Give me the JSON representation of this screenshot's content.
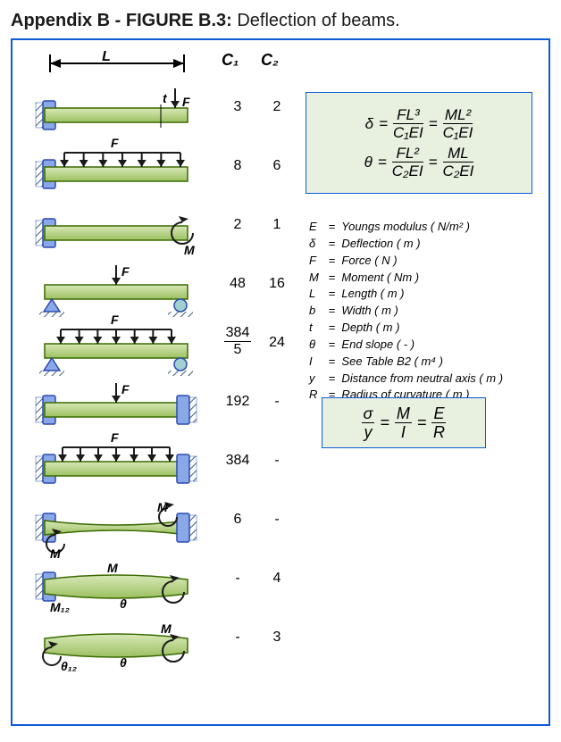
{
  "title_prefix": "Appendix B - FIGURE B.3:",
  "title_rest": " Deflection of beams.",
  "headers": {
    "c1": "C₁",
    "c2": "C₂"
  },
  "dim_label": "L",
  "rows": [
    {
      "c1": "3",
      "c2": "2",
      "type": "cant_point",
      "label": "F",
      "extra": "t"
    },
    {
      "c1": "8",
      "c2": "6",
      "type": "cant_udl",
      "label": "F"
    },
    {
      "c1": "2",
      "c2": "1",
      "type": "cant_moment",
      "label": "M"
    },
    {
      "c1": "48",
      "c2": "16",
      "type": "ss_point",
      "label": "F"
    },
    {
      "c1_num": "384",
      "c1_den": "5",
      "c2": "24",
      "type": "ss_udl",
      "label": "F"
    },
    {
      "c1": "192",
      "c2": "-",
      "type": "fixed_point",
      "label": "F"
    },
    {
      "c1": "384",
      "c2": "-",
      "type": "fixed_udl",
      "label": "F"
    },
    {
      "c1": "6",
      "c2": "-",
      "type": "fixed_moment",
      "label": "M"
    },
    {
      "c1": "-",
      "c2": "4",
      "type": "propcant_moment",
      "label": "M",
      "sub": "M₁₂",
      "theta": "θ"
    },
    {
      "c1": "-",
      "c2": "3",
      "type": "ss_moment",
      "label": "M",
      "theta": "θ",
      "sub": "θ₁₂"
    }
  ],
  "formula": {
    "delta": "δ",
    "theta": "θ",
    "eq": "=",
    "FL3": "FL³",
    "C1EI": "C₁EI",
    "ML2": "ML²",
    "FL2": "FL²",
    "C2EI": "C₂EI",
    "ML": "ML"
  },
  "legend": [
    {
      "k": "E",
      "v": "Youngs modulus ( N/m² )"
    },
    {
      "k": "δ",
      "v": "Deflection ( m )"
    },
    {
      "k": "F",
      "v": "Force ( N )"
    },
    {
      "k": "M",
      "v": "Moment ( Nm )"
    },
    {
      "k": "L",
      "v": "Length ( m )"
    },
    {
      "k": "b",
      "v": "Width ( m )"
    },
    {
      "k": "t",
      "v": "Depth ( m )"
    },
    {
      "k": "θ",
      "v": "End slope ( - )"
    },
    {
      "k": "I",
      "v": "See Table B2 ( m⁴ )"
    },
    {
      "k": "y",
      "v": "Distance from neutral axis ( m )"
    },
    {
      "k": "R",
      "v": "Radius of curvature ( m )"
    }
  ],
  "bending": {
    "sigma": "σ",
    "y": "y",
    "M": "M",
    "I": "I",
    "E": "E",
    "R": "R",
    "eq": "="
  },
  "colors": {
    "frame": "#0b5cd6",
    "beam_fill_top": "#d8e8b8",
    "beam_fill_bot": "#9cc060",
    "beam_stroke": "#3a6a00",
    "support_fill": "#8aa8e8",
    "support_stroke": "#2a4ab0",
    "hatch": "#406080",
    "arrow": "#1a1a1a",
    "roller": "#a0d0d0",
    "formula_bg": "#e8f0e0"
  }
}
